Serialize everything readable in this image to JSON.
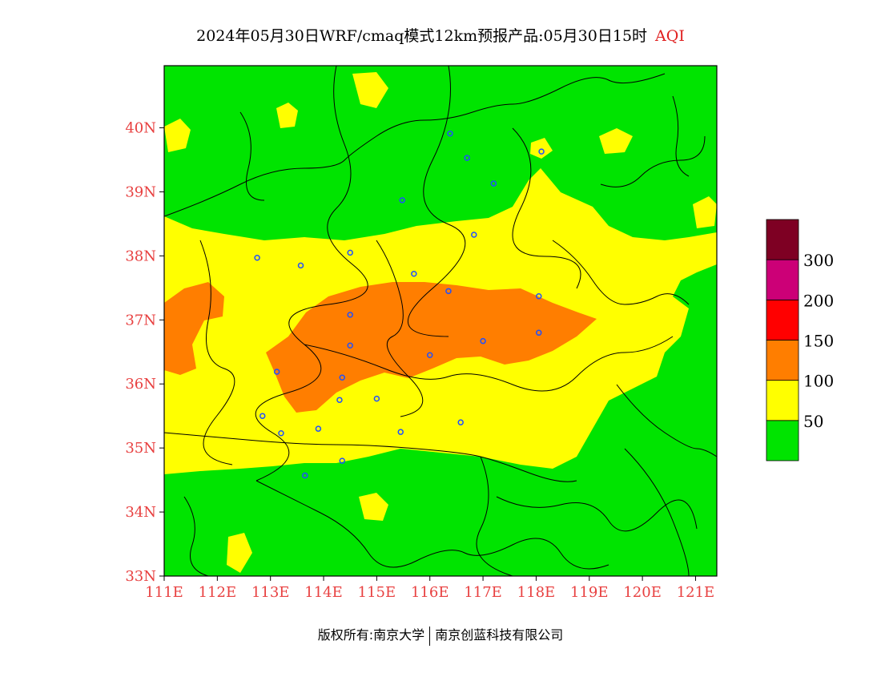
{
  "title": {
    "main": "2024年05月30日WRF/cmaq模式12km预报产品:05月30日15时",
    "variable": "AQI"
  },
  "map": {
    "lon_labels": [
      "111E",
      "112E",
      "113E",
      "114E",
      "115E",
      "116E",
      "117E",
      "118E",
      "119E",
      "120E",
      "121E"
    ],
    "lat_labels": [
      "33N",
      "34N",
      "35N",
      "36N",
      "37N",
      "38N",
      "39N",
      "40N"
    ],
    "lon_range": [
      111,
      121.4
    ],
    "lat_range": [
      33,
      40.97
    ],
    "colors": {
      "green": "#00e400",
      "yellow": "#ffff00",
      "orange": "#ff7e00"
    },
    "cities": [
      [
        116.38,
        39.91
      ],
      [
        117.2,
        39.13
      ],
      [
        115.48,
        38.87
      ],
      [
        116.83,
        38.33
      ],
      [
        114.5,
        38.05
      ],
      [
        113.57,
        37.85
      ],
      [
        112.75,
        37.97
      ],
      [
        115.7,
        37.72
      ],
      [
        116.35,
        37.45
      ],
      [
        118.05,
        37.37
      ],
      [
        117.0,
        36.67
      ],
      [
        118.05,
        36.8
      ],
      [
        114.5,
        37.08
      ],
      [
        114.5,
        36.6
      ],
      [
        116.0,
        36.45
      ],
      [
        113.12,
        36.19
      ],
      [
        114.35,
        36.1
      ],
      [
        115.0,
        35.77
      ],
      [
        114.3,
        35.75
      ],
      [
        112.85,
        35.5
      ],
      [
        113.9,
        35.3
      ],
      [
        113.2,
        35.23
      ],
      [
        115.45,
        35.25
      ],
      [
        116.58,
        35.4
      ],
      [
        114.35,
        34.8
      ],
      [
        113.65,
        34.57
      ],
      [
        118.1,
        39.63
      ],
      [
        116.7,
        39.53
      ]
    ]
  },
  "legend": {
    "levels": [
      {
        "label": "50",
        "color": "#00e400"
      },
      {
        "label": "100",
        "color": "#ffff00"
      },
      {
        "label": "150",
        "color": "#ff7e00"
      },
      {
        "label": "200",
        "color": "#ff0000"
      },
      {
        "label": "300",
        "color": "#cc0077"
      },
      {
        "label": "",
        "color": "#7e0023"
      }
    ]
  },
  "copyright": {
    "left": "版权所有:南京大学",
    "right": "南京创蓝科技有限公司"
  }
}
